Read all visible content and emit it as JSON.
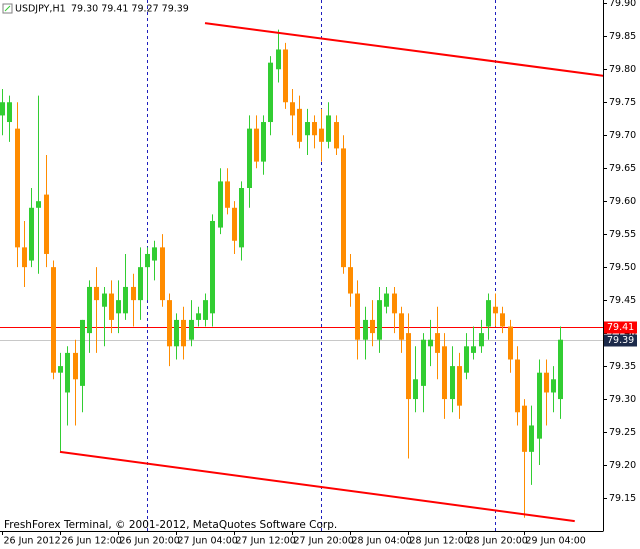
{
  "chart_data": {
    "type": "candlestick",
    "symbol": "USDJPY,H1",
    "ohlc_text": "79.30 79.41 79.27 79.39",
    "footer": "FreshForex Terminal, © 2001-2012, MetaQuotes Software Corp.",
    "x": [
      "26 Jun 04:00",
      "26 Jun 05:00",
      "26 Jun 06:00",
      "26 Jun 07:00",
      "26 Jun 08:00",
      "26 Jun 09:00",
      "26 Jun 10:00",
      "26 Jun 11:00",
      "26 Jun 12:00",
      "26 Jun 13:00",
      "26 Jun 14:00",
      "26 Jun 15:00",
      "26 Jun 16:00",
      "26 Jun 17:00",
      "26 Jun 18:00",
      "26 Jun 19:00",
      "26 Jun 20:00",
      "26 Jun 21:00",
      "26 Jun 22:00",
      "26 Jun 23:00",
      "27 Jun 00:00",
      "27 Jun 01:00",
      "27 Jun 02:00",
      "27 Jun 03:00",
      "27 Jun 04:00",
      "27 Jun 05:00",
      "27 Jun 06:00",
      "27 Jun 07:00",
      "27 Jun 08:00",
      "27 Jun 09:00",
      "27 Jun 10:00",
      "27 Jun 11:00",
      "27 Jun 12:00",
      "27 Jun 13:00",
      "27 Jun 14:00",
      "27 Jun 15:00",
      "27 Jun 16:00",
      "27 Jun 17:00",
      "27 Jun 18:00",
      "27 Jun 19:00",
      "27 Jun 20:00",
      "27 Jun 21:00",
      "27 Jun 22:00",
      "27 Jun 23:00",
      "28 Jun 00:00",
      "28 Jun 01:00",
      "28 Jun 02:00",
      "28 Jun 03:00",
      "28 Jun 04:00",
      "28 Jun 05:00",
      "28 Jun 06:00",
      "28 Jun 07:00",
      "28 Jun 08:00",
      "28 Jun 09:00",
      "28 Jun 10:00",
      "28 Jun 11:00",
      "28 Jun 12:00",
      "28 Jun 13:00",
      "28 Jun 14:00",
      "28 Jun 15:00",
      "28 Jun 16:00",
      "28 Jun 17:00",
      "28 Jun 18:00",
      "28 Jun 19:00",
      "28 Jun 20:00",
      "28 Jun 21:00",
      "28 Jun 22:00",
      "28 Jun 23:00",
      "29 Jun 00:00",
      "29 Jun 01:00",
      "29 Jun 02:00",
      "29 Jun 03:00",
      "29 Jun 04:00",
      "29 Jun 05:00",
      "29 Jun 06:00",
      "29 Jun 07:00",
      "29 Jun 08:00",
      "29 Jun 09:00"
    ],
    "open": [
      79.73,
      79.72,
      79.71,
      79.53,
      79.51,
      79.59,
      79.61,
      79.5,
      79.34,
      79.31,
      79.37,
      79.32,
      79.4,
      79.47,
      79.44,
      79.46,
      79.43,
      79.43,
      79.47,
      79.45,
      79.5,
      79.51,
      79.53,
      79.45,
      79.38,
      79.42,
      79.39,
      79.42,
      79.42,
      79.43,
      79.56,
      79.63,
      79.59,
      79.53,
      79.62,
      79.71,
      79.66,
      79.72,
      79.8,
      79.83,
      79.75,
      79.74,
      79.7,
      79.72,
      79.71,
      79.69,
      79.72,
      79.68,
      79.5,
      79.46,
      79.39,
      79.42,
      79.39,
      79.44,
      79.46,
      79.43,
      79.4,
      79.3,
      79.32,
      79.38,
      79.4,
      79.38,
      79.3,
      79.35,
      79.34,
      79.37,
      79.38,
      79.41,
      79.44,
      79.43,
      79.41,
      79.36,
      79.29,
      79.22,
      79.24,
      79.34,
      79.31,
      79.3
    ],
    "high": [
      79.77,
      79.76,
      79.75,
      79.57,
      79.62,
      79.76,
      79.67,
      79.51,
      79.37,
      79.38,
      79.39,
      79.42,
      79.48,
      79.5,
      79.47,
      79.48,
      79.48,
      79.52,
      79.49,
      79.53,
      79.53,
      79.54,
      79.55,
      79.46,
      79.43,
      79.44,
      79.45,
      79.44,
      79.46,
      79.58,
      79.65,
      79.65,
      79.6,
      79.63,
      79.73,
      79.73,
      79.73,
      79.82,
      79.86,
      79.84,
      79.77,
      79.76,
      79.74,
      79.73,
      79.74,
      79.75,
      79.73,
      79.7,
      79.52,
      79.48,
      79.44,
      79.45,
      79.47,
      79.47,
      79.47,
      79.44,
      79.43,
      79.38,
      79.4,
      79.42,
      79.44,
      79.4,
      79.38,
      79.37,
      79.4,
      79.41,
      79.42,
      79.46,
      79.46,
      79.44,
      79.42,
      79.38,
      79.3,
      79.29,
      79.36,
      79.36,
      79.35,
      79.41
    ],
    "low": [
      79.7,
      79.69,
      79.5,
      79.47,
      79.5,
      79.49,
      79.5,
      79.33,
      79.22,
      79.26,
      79.26,
      79.28,
      79.37,
      79.37,
      79.38,
      79.4,
      79.4,
      79.42,
      79.41,
      79.42,
      79.45,
      79.48,
      79.44,
      79.35,
      79.36,
      79.36,
      79.38,
      79.41,
      79.41,
      79.41,
      79.55,
      79.58,
      79.52,
      79.51,
      79.59,
      79.65,
      79.64,
      79.7,
      79.78,
      79.74,
      79.7,
      79.68,
      79.67,
      79.68,
      79.66,
      79.68,
      79.67,
      79.49,
      79.44,
      79.36,
      79.36,
      79.38,
      79.37,
      79.43,
      79.4,
      79.37,
      79.21,
      79.28,
      79.28,
      79.35,
      79.33,
      79.27,
      79.28,
      79.27,
      79.33,
      79.36,
      79.37,
      79.39,
      79.41,
      79.4,
      79.34,
      79.26,
      79.12,
      79.17,
      79.2,
      79.26,
      79.28,
      79.27
    ],
    "close": [
      79.75,
      79.75,
      79.53,
      79.5,
      79.59,
      79.6,
      79.52,
      79.34,
      79.35,
      79.37,
      79.33,
      79.42,
      79.47,
      79.45,
      79.46,
      79.42,
      79.45,
      79.47,
      79.45,
      79.5,
      79.52,
      79.53,
      79.45,
      79.38,
      79.42,
      79.38,
      79.42,
      79.43,
      79.45,
      79.57,
      79.63,
      79.59,
      79.54,
      79.62,
      79.71,
      79.66,
      79.72,
      79.81,
      79.83,
      79.75,
      79.73,
      79.69,
      79.72,
      79.7,
      79.69,
      79.73,
      79.68,
      79.5,
      79.46,
      79.39,
      79.42,
      79.4,
      79.45,
      79.46,
      79.43,
      79.39,
      79.3,
      79.33,
      79.39,
      79.39,
      79.37,
      79.3,
      79.35,
      79.29,
      79.38,
      79.38,
      79.4,
      79.45,
      79.43,
      79.41,
      79.36,
      79.28,
      79.22,
      79.26,
      79.34,
      79.31,
      79.33,
      79.39
    ],
    "up_color": "#32cd32",
    "down_color": "#ff8c00",
    "ylim": [
      79.1,
      79.905
    ],
    "yticks": [
      79.15,
      {
        "value": 79.2,
        "label": "79.20"
      },
      79.25,
      {
        "value": 79.3,
        "label": "79.30"
      },
      79.35,
      {
        "value": 79.4,
        "label": "79.40"
      },
      79.45,
      {
        "value": 79.5,
        "label": "79.50"
      },
      79.55,
      {
        "value": 79.6,
        "label": "79.60"
      },
      79.65,
      {
        "value": 79.7,
        "label": "79.70"
      },
      79.75,
      {
        "value": 79.8,
        "label": "79.80"
      },
      79.85,
      {
        "value": 79.9,
        "label": "79.90"
      }
    ],
    "xticks": [
      {
        "value": "26 Jun 04:00",
        "label": "26 Jun 2012"
      },
      "26 Jun 12:00",
      "26 Jun 20:00",
      "27 Jun 04:00",
      "27 Jun 12:00",
      "27 Jun 20:00",
      "28 Jun 04:00",
      "28 Jun 12:00",
      "28 Jun 20:00",
      "29 Jun 04:00"
    ],
    "period_separators": true,
    "separator_color": "#1e1ebe",
    "price_lines": [
      {
        "value": 79.41,
        "color": "#ff0000",
        "box_color": "#ff0000"
      },
      {
        "value": 79.39,
        "color": "#c8c8c8",
        "box_color": "#1c2a4a"
      }
    ],
    "trendlines": [
      {
        "x": [
          "27 Jun 08:00",
          "29 Jun 15:00"
        ],
        "y": [
          79.87,
          79.79
        ],
        "color": "#ff0000"
      },
      {
        "x": [
          "26 Jun 12:00",
          "29 Jun 11:00"
        ],
        "y": [
          79.22,
          79.115
        ],
        "color": "#ff0000"
      }
    ]
  }
}
